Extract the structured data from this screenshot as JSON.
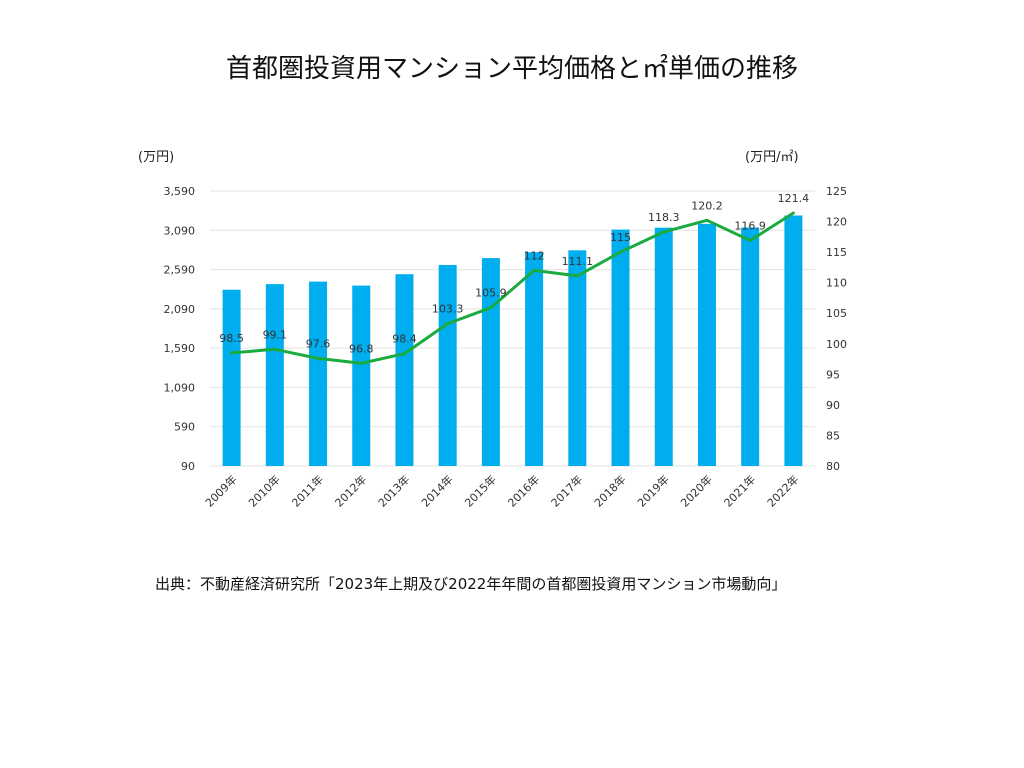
{
  "title": "首都圏投資用マンション平均価格と㎡単価の推移",
  "left_unit": "(万円)",
  "right_unit": "(万円/㎡)",
  "source": "出典：不動産経済研究所「2023年上期及び2022年年間の首都圏投資用マンション市場動向」",
  "colors": {
    "bar": "#00aeef",
    "line": "#1aab40",
    "grid": "#e3e3e3"
  },
  "chart_data": {
    "type": "bar",
    "categories": [
      "2009年",
      "2010年",
      "2011年",
      "2012年",
      "2013年",
      "2014年",
      "2015年",
      "2016年",
      "2017年",
      "2018年",
      "2019年",
      "2020年",
      "2021年",
      "2022年"
    ],
    "ylim": [
      90,
      3590
    ],
    "yticks": [
      "90",
      "590",
      "1,090",
      "1,590",
      "2,090",
      "2,590",
      "3,090",
      "3,590"
    ],
    "y2lim": [
      80,
      125
    ],
    "y2ticks": [
      "80",
      "85",
      "90",
      "95",
      "100",
      "105",
      "110",
      "115",
      "120",
      "125"
    ],
    "series": [
      {
        "type": "bar",
        "axis": "left",
        "values": [
          2333,
          2405,
          2437,
          2386,
          2531,
          2649,
          2736,
          2810,
          2835,
          3099,
          3123,
          3172,
          3125,
          3278
        ]
      },
      {
        "type": "line",
        "axis": "right",
        "values": [
          98.5,
          99.1,
          97.6,
          96.8,
          98.4,
          103.3,
          105.9,
          112,
          111.1,
          115,
          118.3,
          120.2,
          116.9,
          121.4
        ],
        "labels": [
          "98.5",
          "99.1",
          "97.6",
          "96.8",
          "98.4",
          "103.3",
          "105.9",
          "112",
          "111.1",
          "115",
          "118.3",
          "120.2",
          "116.9",
          "121.4"
        ]
      }
    ]
  }
}
